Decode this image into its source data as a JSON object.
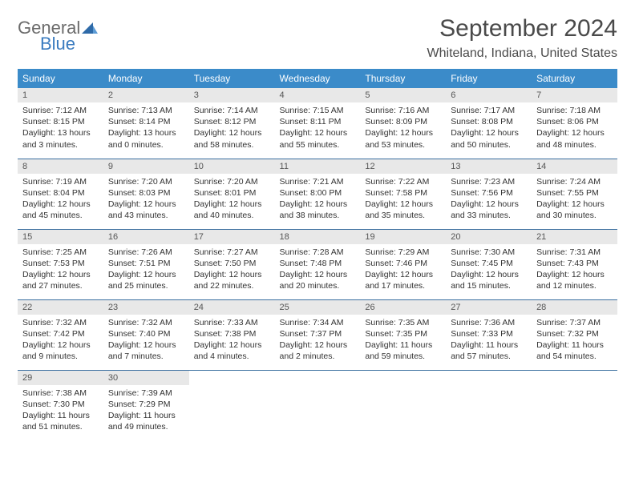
{
  "logo": {
    "line1": "General",
    "line2": "Blue"
  },
  "title": "September 2024",
  "location": "Whiteland, Indiana, United States",
  "header_bg": "#3b8bc9",
  "header_text": "#ffffff",
  "rule_color": "#3b6fa0",
  "daynum_bg": "#e8e8e8",
  "weekdays": [
    "Sunday",
    "Monday",
    "Tuesday",
    "Wednesday",
    "Thursday",
    "Friday",
    "Saturday"
  ],
  "days": [
    {
      "n": "1",
      "sunrise": "7:12 AM",
      "sunset": "8:15 PM",
      "dlh": "13",
      "dlm": "3"
    },
    {
      "n": "2",
      "sunrise": "7:13 AM",
      "sunset": "8:14 PM",
      "dlh": "13",
      "dlm": "0"
    },
    {
      "n": "3",
      "sunrise": "7:14 AM",
      "sunset": "8:12 PM",
      "dlh": "12",
      "dlm": "58"
    },
    {
      "n": "4",
      "sunrise": "7:15 AM",
      "sunset": "8:11 PM",
      "dlh": "12",
      "dlm": "55"
    },
    {
      "n": "5",
      "sunrise": "7:16 AM",
      "sunset": "8:09 PM",
      "dlh": "12",
      "dlm": "53"
    },
    {
      "n": "6",
      "sunrise": "7:17 AM",
      "sunset": "8:08 PM",
      "dlh": "12",
      "dlm": "50"
    },
    {
      "n": "7",
      "sunrise": "7:18 AM",
      "sunset": "8:06 PM",
      "dlh": "12",
      "dlm": "48"
    },
    {
      "n": "8",
      "sunrise": "7:19 AM",
      "sunset": "8:04 PM",
      "dlh": "12",
      "dlm": "45"
    },
    {
      "n": "9",
      "sunrise": "7:20 AM",
      "sunset": "8:03 PM",
      "dlh": "12",
      "dlm": "43"
    },
    {
      "n": "10",
      "sunrise": "7:20 AM",
      "sunset": "8:01 PM",
      "dlh": "12",
      "dlm": "40"
    },
    {
      "n": "11",
      "sunrise": "7:21 AM",
      "sunset": "8:00 PM",
      "dlh": "12",
      "dlm": "38"
    },
    {
      "n": "12",
      "sunrise": "7:22 AM",
      "sunset": "7:58 PM",
      "dlh": "12",
      "dlm": "35"
    },
    {
      "n": "13",
      "sunrise": "7:23 AM",
      "sunset": "7:56 PM",
      "dlh": "12",
      "dlm": "33"
    },
    {
      "n": "14",
      "sunrise": "7:24 AM",
      "sunset": "7:55 PM",
      "dlh": "12",
      "dlm": "30"
    },
    {
      "n": "15",
      "sunrise": "7:25 AM",
      "sunset": "7:53 PM",
      "dlh": "12",
      "dlm": "27"
    },
    {
      "n": "16",
      "sunrise": "7:26 AM",
      "sunset": "7:51 PM",
      "dlh": "12",
      "dlm": "25"
    },
    {
      "n": "17",
      "sunrise": "7:27 AM",
      "sunset": "7:50 PM",
      "dlh": "12",
      "dlm": "22"
    },
    {
      "n": "18",
      "sunrise": "7:28 AM",
      "sunset": "7:48 PM",
      "dlh": "12",
      "dlm": "20"
    },
    {
      "n": "19",
      "sunrise": "7:29 AM",
      "sunset": "7:46 PM",
      "dlh": "12",
      "dlm": "17"
    },
    {
      "n": "20",
      "sunrise": "7:30 AM",
      "sunset": "7:45 PM",
      "dlh": "12",
      "dlm": "15"
    },
    {
      "n": "21",
      "sunrise": "7:31 AM",
      "sunset": "7:43 PM",
      "dlh": "12",
      "dlm": "12"
    },
    {
      "n": "22",
      "sunrise": "7:32 AM",
      "sunset": "7:42 PM",
      "dlh": "12",
      "dlm": "9"
    },
    {
      "n": "23",
      "sunrise": "7:32 AM",
      "sunset": "7:40 PM",
      "dlh": "12",
      "dlm": "7"
    },
    {
      "n": "24",
      "sunrise": "7:33 AM",
      "sunset": "7:38 PM",
      "dlh": "12",
      "dlm": "4"
    },
    {
      "n": "25",
      "sunrise": "7:34 AM",
      "sunset": "7:37 PM",
      "dlh": "12",
      "dlm": "2"
    },
    {
      "n": "26",
      "sunrise": "7:35 AM",
      "sunset": "7:35 PM",
      "dlh": "11",
      "dlm": "59"
    },
    {
      "n": "27",
      "sunrise": "7:36 AM",
      "sunset": "7:33 PM",
      "dlh": "11",
      "dlm": "57"
    },
    {
      "n": "28",
      "sunrise": "7:37 AM",
      "sunset": "7:32 PM",
      "dlh": "11",
      "dlm": "54"
    },
    {
      "n": "29",
      "sunrise": "7:38 AM",
      "sunset": "7:30 PM",
      "dlh": "11",
      "dlm": "51"
    },
    {
      "n": "30",
      "sunrise": "7:39 AM",
      "sunset": "7:29 PM",
      "dlh": "11",
      "dlm": "49"
    }
  ],
  "start_weekday": 0,
  "labels": {
    "sunrise": "Sunrise:",
    "sunset": "Sunset:",
    "daylight_prefix": "Daylight:",
    "hours": "hours",
    "and": "and",
    "minutes": "minutes."
  }
}
